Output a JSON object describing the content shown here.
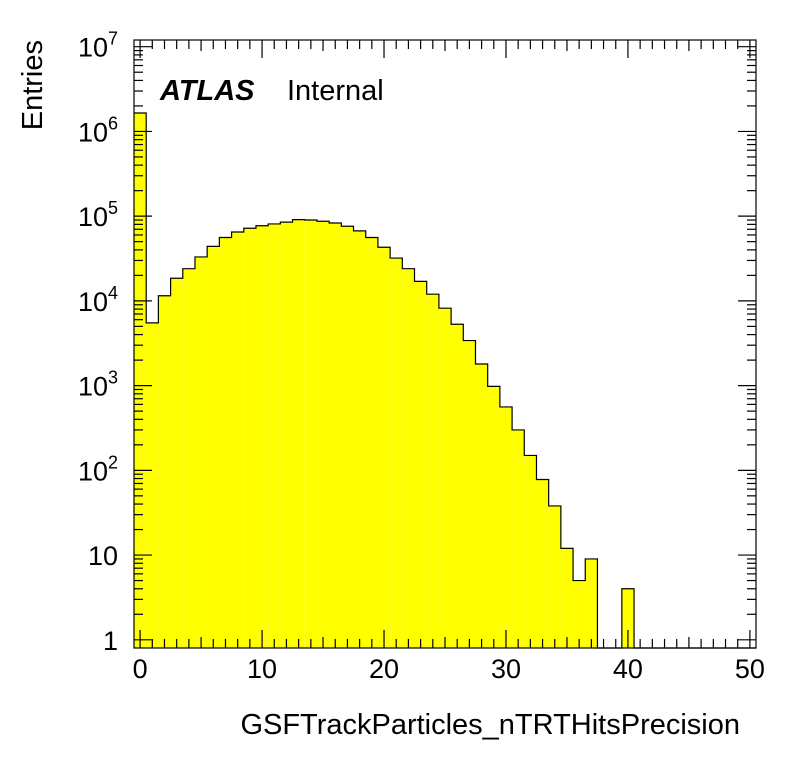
{
  "chart_data": {
    "type": "bar",
    "style": "histogram",
    "xlabel": "GSFTrackParticles_nTRTHitsPrecision",
    "ylabel": "Entries",
    "label": {
      "experiment": "ATLAS",
      "status": "Internal"
    },
    "xlim": [
      -0.5,
      50.5
    ],
    "ylim": [
      0.8,
      12000000
    ],
    "log_y": true,
    "grid": false,
    "bin_width": 1,
    "x_ticks": [
      {
        "value": 0,
        "label": "0"
      },
      {
        "value": 10,
        "label": "10"
      },
      {
        "value": 20,
        "label": "20"
      },
      {
        "value": 30,
        "label": "30"
      },
      {
        "value": 40,
        "label": "40"
      },
      {
        "value": 50,
        "label": "50"
      }
    ],
    "y_ticks": [
      {
        "value": 1,
        "label": "1",
        "exp": ""
      },
      {
        "value": 10,
        "label": "10",
        "exp": ""
      },
      {
        "value": 100,
        "label": "10",
        "exp": "2"
      },
      {
        "value": 1000,
        "label": "10",
        "exp": "3"
      },
      {
        "value": 10000,
        "label": "10",
        "exp": "4"
      },
      {
        "value": 100000,
        "label": "10",
        "exp": "5"
      },
      {
        "value": 1000000,
        "label": "10",
        "exp": "6"
      },
      {
        "value": 10000000,
        "label": "10",
        "exp": "7"
      }
    ],
    "fill_color": "#ffff00",
    "line_color": "#000000",
    "x": [
      0,
      1,
      2,
      3,
      4,
      5,
      6,
      7,
      8,
      9,
      10,
      11,
      12,
      13,
      14,
      15,
      16,
      17,
      18,
      19,
      20,
      21,
      22,
      23,
      24,
      25,
      26,
      27,
      28,
      29,
      30,
      31,
      32,
      33,
      34,
      35,
      36,
      37,
      38,
      39,
      40,
      41,
      42,
      43,
      44,
      45,
      46,
      47,
      48,
      49,
      50
    ],
    "values": [
      1650000,
      5500,
      11500,
      18500,
      24000,
      33000,
      44000,
      56000,
      65000,
      72000,
      77000,
      81000,
      85000,
      91000,
      90000,
      87000,
      83000,
      76000,
      67000,
      56000,
      43000,
      32000,
      24000,
      17000,
      12000,
      8200,
      5300,
      3400,
      1800,
      980,
      560,
      300,
      150,
      78,
      38,
      12,
      5,
      9,
      0,
      0,
      4,
      0,
      0,
      0,
      0,
      0,
      0,
      0,
      0,
      0,
      0
    ]
  }
}
